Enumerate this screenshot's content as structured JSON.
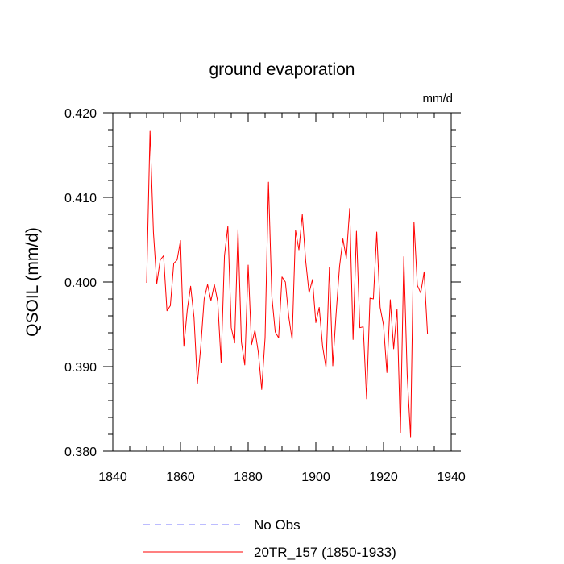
{
  "chart_data": {
    "type": "line",
    "title": "ground evaporation",
    "units_label": "mm/d",
    "ylabel": "QSOIL  (mm/d)",
    "xlabel": "",
    "xlim": [
      1840,
      1940
    ],
    "ylim": [
      0.38,
      0.42
    ],
    "x_ticks": [
      1840,
      1860,
      1880,
      1900,
      1920,
      1940
    ],
    "x_tick_labels": [
      "1840",
      "1860",
      "1880",
      "1900",
      "1920",
      "1940"
    ],
    "y_ticks": [
      0.38,
      0.39,
      0.4,
      0.41,
      0.42
    ],
    "y_tick_labels": [
      "0.380",
      "0.390",
      "0.400",
      "0.410",
      "0.420"
    ],
    "series": [
      {
        "name": "20TR_157 (1850-1933)",
        "color": "#ff0000",
        "style": "solid",
        "x": [
          1850,
          1851,
          1852,
          1853,
          1854,
          1855,
          1856,
          1857,
          1858,
          1859,
          1860,
          1861,
          1862,
          1863,
          1864,
          1865,
          1866,
          1867,
          1868,
          1869,
          1870,
          1871,
          1872,
          1873,
          1874,
          1875,
          1876,
          1877,
          1878,
          1879,
          1880,
          1881,
          1882,
          1883,
          1884,
          1885,
          1886,
          1887,
          1888,
          1889,
          1890,
          1891,
          1892,
          1893,
          1894,
          1895,
          1896,
          1897,
          1898,
          1899,
          1900,
          1901,
          1902,
          1903,
          1904,
          1905,
          1906,
          1907,
          1908,
          1909,
          1910,
          1911,
          1912,
          1913,
          1914,
          1915,
          1916,
          1917,
          1918,
          1919,
          1920,
          1921,
          1922,
          1923,
          1924,
          1925,
          1926,
          1927,
          1928,
          1929,
          1930,
          1931,
          1932,
          1933
        ],
        "values": [
          0.3999,
          0.4179,
          0.4059,
          0.3998,
          0.4026,
          0.4031,
          0.3966,
          0.3972,
          0.4022,
          0.4026,
          0.4049,
          0.3924,
          0.3967,
          0.3995,
          0.3958,
          0.388,
          0.3924,
          0.398,
          0.3997,
          0.3978,
          0.3997,
          0.3977,
          0.3905,
          0.4031,
          0.4066,
          0.3946,
          0.3928,
          0.4062,
          0.3929,
          0.3902,
          0.402,
          0.3926,
          0.3943,
          0.3917,
          0.3873,
          0.3934,
          0.4118,
          0.3983,
          0.3941,
          0.3934,
          0.4006,
          0.4,
          0.3959,
          0.3932,
          0.4061,
          0.4038,
          0.408,
          0.4025,
          0.3987,
          0.4003,
          0.3952,
          0.397,
          0.3924,
          0.3899,
          0.4017,
          0.3901,
          0.3963,
          0.4018,
          0.4051,
          0.4028,
          0.4087,
          0.3932,
          0.406,
          0.3946,
          0.3947,
          0.3862,
          0.3981,
          0.398,
          0.4059,
          0.397,
          0.3949,
          0.3893,
          0.3979,
          0.3921,
          0.3968,
          0.3822,
          0.403,
          0.389,
          0.3817,
          0.4071,
          0.3996,
          0.3987,
          0.4012,
          0.3939
        ]
      },
      {
        "name": "No Obs",
        "color": "#7a7aff",
        "style": "dashed",
        "x": [],
        "values": []
      }
    ],
    "legend_position": "bottom-center",
    "grid": false
  }
}
